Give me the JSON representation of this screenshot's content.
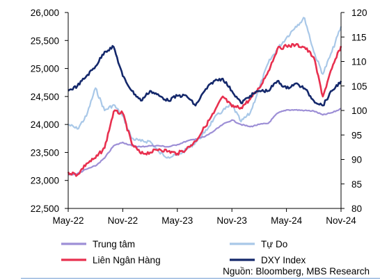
{
  "chart_data": {
    "type": "line",
    "title": "",
    "xlabel": "",
    "ylabel_left": "",
    "ylabel_right": "",
    "x_ticks": [
      "May-22",
      "Nov-22",
      "May-23",
      "Nov-23",
      "May-24",
      "Nov-24"
    ],
    "x_range": [
      "May-22",
      "Nov-24"
    ],
    "left_axis": {
      "range": [
        22500,
        26000
      ],
      "ticks": [
        "22,500",
        "23,000",
        "23,500",
        "24,000",
        "24,500",
        "25,000",
        "25,500",
        "26,000"
      ]
    },
    "right_axis": {
      "range": [
        80,
        120
      ],
      "ticks": [
        "80",
        "85",
        "90",
        "95",
        "100",
        "105",
        "110",
        "115",
        "120"
      ]
    },
    "grid": false,
    "legend_position": "bottom",
    "series": [
      {
        "name": "Trung tâm",
        "axis": "left",
        "color": "#9d8fd6",
        "points": [
          [
            "May-22",
            23100
          ],
          [
            "Jun-22",
            23120
          ],
          [
            "Jul-22",
            23200
          ],
          [
            "Aug-22",
            23260
          ],
          [
            "Sep-22",
            23400
          ],
          [
            "Oct-22",
            23620
          ],
          [
            "Nov-22",
            23680
          ],
          [
            "Dec-22",
            23620
          ],
          [
            "Jan-23",
            23600
          ],
          [
            "Feb-23",
            23620
          ],
          [
            "Mar-23",
            23620
          ],
          [
            "Apr-23",
            23600
          ],
          [
            "May-23",
            23640
          ],
          [
            "Jun-23",
            23700
          ],
          [
            "Jul-23",
            23740
          ],
          [
            "Aug-23",
            23780
          ],
          [
            "Sep-23",
            23880
          ],
          [
            "Oct-23",
            24000
          ],
          [
            "Nov-23",
            24080
          ],
          [
            "Dec-23",
            24000
          ],
          [
            "Jan-24",
            23960
          ],
          [
            "Feb-24",
            24000
          ],
          [
            "Mar-24",
            24020
          ],
          [
            "Apr-24",
            24200
          ],
          [
            "May-24",
            24260
          ],
          [
            "Jun-24",
            24260
          ],
          [
            "Jul-24",
            24250
          ],
          [
            "Aug-24",
            24240
          ],
          [
            "Sep-24",
            24170
          ],
          [
            "Oct-24",
            24210
          ],
          [
            "Nov-24",
            24280
          ]
        ]
      },
      {
        "name": "Tự Do",
        "axis": "left",
        "color": "#a9c8e8",
        "points": [
          [
            "May-22",
            24000
          ],
          [
            "Jun-22",
            23920
          ],
          [
            "Jul-22",
            24150
          ],
          [
            "Aug-22",
            24650
          ],
          [
            "Sep-22",
            24250
          ],
          [
            "Oct-22",
            24350
          ],
          [
            "Nov-22",
            24150
          ],
          [
            "Dec-22",
            23750
          ],
          [
            "Jan-23",
            23700
          ],
          [
            "Feb-23",
            23700
          ],
          [
            "Mar-23",
            23500
          ],
          [
            "Apr-23",
            23420
          ],
          [
            "May-23",
            23450
          ],
          [
            "Jun-23",
            23550
          ],
          [
            "Jul-23",
            23680
          ],
          [
            "Aug-23",
            23850
          ],
          [
            "Sep-23",
            24100
          ],
          [
            "Oct-23",
            24250
          ],
          [
            "Nov-23",
            24350
          ],
          [
            "Dec-23",
            24050
          ],
          [
            "Jan-24",
            24200
          ],
          [
            "Feb-24",
            24650
          ],
          [
            "Mar-24",
            25100
          ],
          [
            "Apr-24",
            25350
          ],
          [
            "May-24",
            25550
          ],
          [
            "Jun-24",
            25750
          ],
          [
            "Jul-24",
            25900
          ],
          [
            "Aug-24",
            25300
          ],
          [
            "Sep-24",
            24900
          ],
          [
            "Oct-24",
            25300
          ],
          [
            "Nov-24",
            25750
          ]
        ]
      },
      {
        "name": "Liên Ngân Hàng",
        "axis": "left",
        "color": "#e8304f",
        "points": [
          [
            "May-22",
            23150
          ],
          [
            "Jun-22",
            23100
          ],
          [
            "Jul-22",
            23300
          ],
          [
            "Aug-22",
            23400
          ],
          [
            "Sep-22",
            23580
          ],
          [
            "Oct-22",
            24230
          ],
          [
            "Nov-22",
            24200
          ],
          [
            "Dec-22",
            23650
          ],
          [
            "Jan-23",
            23480
          ],
          [
            "Feb-23",
            23500
          ],
          [
            "Mar-23",
            23560
          ],
          [
            "Apr-23",
            23520
          ],
          [
            "May-23",
            23480
          ],
          [
            "Jun-23",
            23560
          ],
          [
            "Jul-23",
            23700
          ],
          [
            "Aug-23",
            23950
          ],
          [
            "Sep-23",
            24200
          ],
          [
            "Oct-23",
            24500
          ],
          [
            "Nov-23",
            24320
          ],
          [
            "Dec-23",
            24300
          ],
          [
            "Jan-24",
            24450
          ],
          [
            "Feb-24",
            24650
          ],
          [
            "Mar-24",
            24950
          ],
          [
            "Apr-24",
            25350
          ],
          [
            "May-24",
            25400
          ],
          [
            "Jun-24",
            25420
          ],
          [
            "Jul-24",
            25380
          ],
          [
            "Aug-24",
            25200
          ],
          [
            "Sep-24",
            24500
          ],
          [
            "Oct-24",
            25000
          ],
          [
            "Nov-24",
            25400
          ]
        ]
      },
      {
        "name": "DXY Index",
        "axis": "right",
        "color": "#14286b",
        "points": [
          [
            "May-22",
            104
          ],
          [
            "Jun-22",
            105
          ],
          [
            "Jul-22",
            107
          ],
          [
            "Aug-22",
            109
          ],
          [
            "Sep-22",
            112
          ],
          [
            "Oct-22",
            113
          ],
          [
            "Nov-22",
            107
          ],
          [
            "Dec-22",
            104
          ],
          [
            "Jan-23",
            102
          ],
          [
            "Feb-23",
            104
          ],
          [
            "Mar-23",
            103
          ],
          [
            "Apr-23",
            102
          ],
          [
            "May-23",
            103
          ],
          [
            "Jun-23",
            103
          ],
          [
            "Jul-23",
            101
          ],
          [
            "Aug-23",
            104
          ],
          [
            "Sep-23",
            106
          ],
          [
            "Oct-23",
            106.5
          ],
          [
            "Nov-23",
            104
          ],
          [
            "Dec-23",
            101.5
          ],
          [
            "Jan-24",
            103
          ],
          [
            "Feb-24",
            104
          ],
          [
            "Mar-24",
            104
          ],
          [
            "Apr-24",
            106
          ],
          [
            "May-24",
            104.5
          ],
          [
            "Jun-24",
            105.5
          ],
          [
            "Jul-24",
            104.5
          ],
          [
            "Aug-24",
            102
          ],
          [
            "Sep-24",
            101
          ],
          [
            "Oct-24",
            104
          ],
          [
            "Nov-24",
            106
          ]
        ]
      }
    ],
    "source": "Nguồn: Bloomberg, MBS Research"
  }
}
